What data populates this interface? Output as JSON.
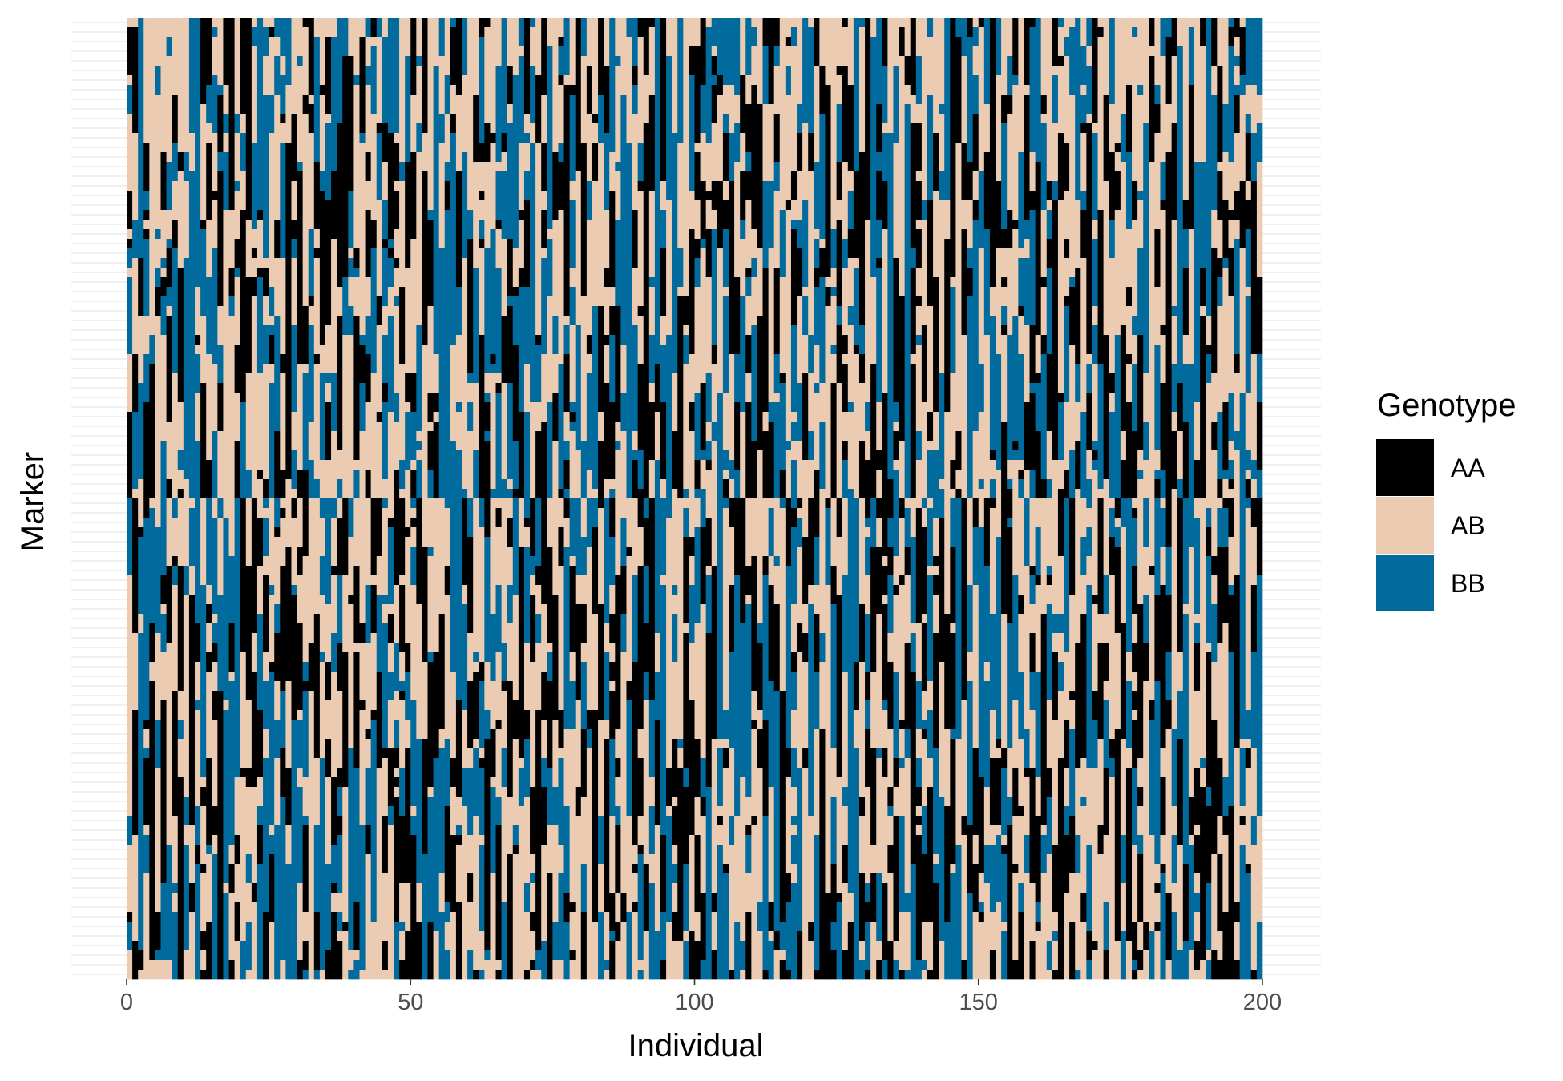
{
  "chart_data": {
    "type": "heatmap",
    "title": "",
    "xlabel": "Individual",
    "ylabel": "Marker",
    "xlim": [
      0,
      200
    ],
    "x_ticks": [
      "0",
      "50",
      "100",
      "150",
      "200"
    ],
    "n_individuals": 200,
    "n_markers": 100,
    "grid": true,
    "legend": {
      "title": "Genotype",
      "placement": "right",
      "entries": [
        {
          "label": "AA",
          "color": "#000000"
        },
        {
          "label": "AB",
          "color": "#EBCBB1"
        },
        {
          "label": "BB",
          "color": "#006B9C"
        }
      ]
    },
    "panel_background": "#ffffff",
    "gridline_color": "#ebebeb"
  }
}
